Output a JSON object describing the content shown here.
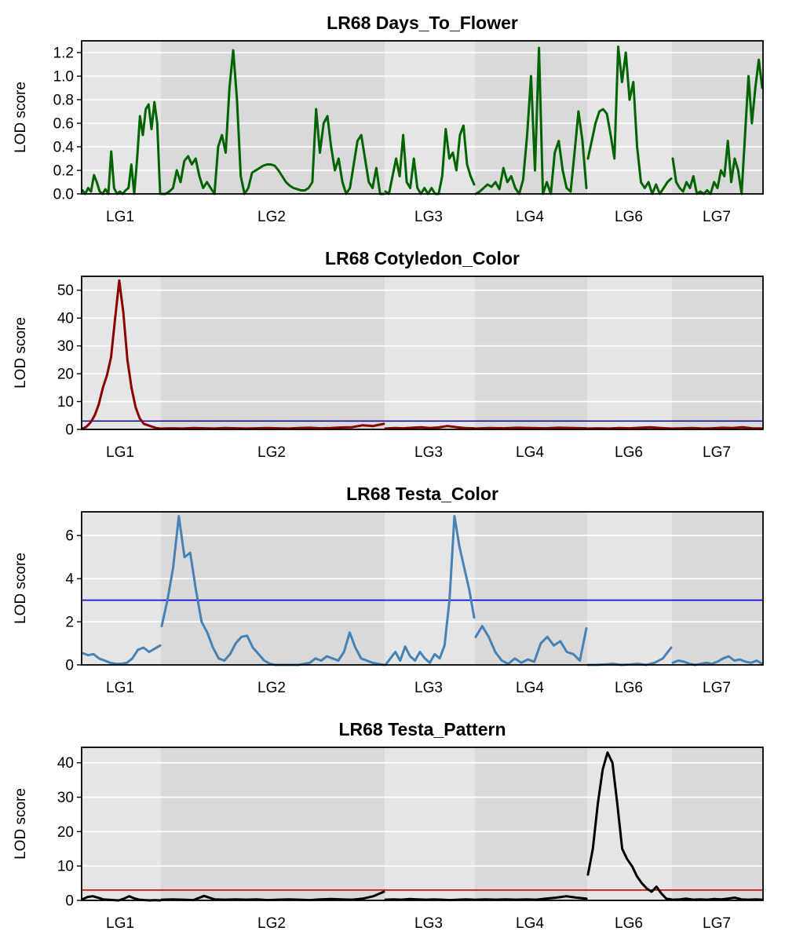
{
  "chart_data": [
    {
      "type": "line",
      "title": "LR68 Days_To_Flower",
      "ylabel": "LOD score",
      "ylim": [
        0,
        1.3
      ],
      "yticks": [
        0.0,
        0.2,
        0.4,
        0.6,
        0.8,
        1.0,
        1.2
      ],
      "ytick_labels": [
        "0.0",
        "0.2",
        "0.4",
        "0.6",
        "0.8",
        "1.0",
        "1.2"
      ],
      "xticks": [
        "LG1",
        "LG2",
        "LG3",
        "LG4",
        "LG6",
        "LG7"
      ],
      "grid": true,
      "threshold": null,
      "color": "#006400",
      "series": [
        {
          "lg": "LG1",
          "values": [
            0.03,
            0.0,
            0.05,
            0.02,
            0.16,
            0.1,
            0.02,
            0.0,
            0.04,
            0.0,
            0.36,
            0.05,
            0.0,
            0.02,
            0.0,
            0.03,
            0.05,
            0.25,
            0.0,
            0.3,
            0.66,
            0.5,
            0.72,
            0.76,
            0.55,
            0.78,
            0.6,
            0.0
          ]
        },
        {
          "lg": "LG2",
          "values": [
            0.0,
            0.0,
            0.02,
            0.05,
            0.2,
            0.1,
            0.28,
            0.32,
            0.25,
            0.3,
            0.15,
            0.05,
            0.1,
            0.05,
            0.0,
            0.4,
            0.5,
            0.35,
            0.9,
            1.22,
            0.8,
            0.15,
            0.0,
            0.05,
            0.18,
            0.2,
            0.22,
            0.24,
            0.25,
            0.25,
            0.24,
            0.2,
            0.15,
            0.1,
            0.07,
            0.05,
            0.04,
            0.03,
            0.03,
            0.05,
            0.1,
            0.72,
            0.35,
            0.6,
            0.66,
            0.4,
            0.2,
            0.3,
            0.1,
            0.0,
            0.05,
            0.25,
            0.45,
            0.5,
            0.3,
            0.1,
            0.05,
            0.22,
            0.0,
            0.0
          ]
        },
        {
          "lg": "LG3",
          "values": [
            0.02,
            0.0,
            0.15,
            0.3,
            0.15,
            0.5,
            0.1,
            0.05,
            0.3,
            0.05,
            0.0,
            0.05,
            0.0,
            0.05,
            0.0,
            0.0,
            0.15,
            0.55,
            0.3,
            0.35,
            0.2,
            0.5,
            0.58,
            0.25,
            0.15,
            0.08
          ]
        },
        {
          "lg": "LG4",
          "values": [
            0.0,
            0.02,
            0.05,
            0.08,
            0.06,
            0.1,
            0.04,
            0.22,
            0.1,
            0.15,
            0.05,
            0.0,
            0.12,
            0.5,
            1.0,
            0.2,
            1.24,
            0.0,
            0.1,
            0.0,
            0.35,
            0.45,
            0.2,
            0.05,
            0.02,
            0.35,
            0.7,
            0.45,
            0.05
          ]
        },
        {
          "lg": "LG6",
          "values": [
            0.3,
            0.45,
            0.6,
            0.7,
            0.72,
            0.68,
            0.5,
            0.3,
            1.25,
            0.95,
            1.2,
            0.8,
            0.95,
            0.4,
            0.1,
            0.05,
            0.1,
            0.0,
            0.08,
            0.0,
            0.05,
            0.1,
            0.13
          ]
        },
        {
          "lg": "LG7",
          "values": [
            0.3,
            0.1,
            0.05,
            0.02,
            0.1,
            0.05,
            0.15,
            0.0,
            0.02,
            0.0,
            0.03,
            0.0,
            0.1,
            0.05,
            0.2,
            0.15,
            0.45,
            0.1,
            0.3,
            0.2,
            0.0,
            0.5,
            1.0,
            0.6,
            0.9,
            1.14,
            0.9
          ]
        }
      ]
    },
    {
      "type": "line",
      "title": "LR68 Cotyledon_Color",
      "ylabel": "LOD score",
      "ylim": [
        0,
        55
      ],
      "yticks": [
        0,
        10,
        20,
        30,
        40,
        50
      ],
      "ytick_labels": [
        "0",
        "10",
        "20",
        "30",
        "40",
        "50"
      ],
      "xticks": [
        "LG1",
        "LG2",
        "LG3",
        "LG4",
        "LG6",
        "LG7"
      ],
      "grid": true,
      "threshold": {
        "value": 3,
        "color": "#00008B"
      },
      "color": "#8B0000",
      "series": [
        {
          "lg": "LG1",
          "values": [
            0.2,
            1.0,
            2.5,
            5.0,
            9.0,
            15.0,
            19.5,
            26.0,
            40.0,
            53.5,
            42.0,
            25.0,
            15.0,
            8.0,
            4.0,
            2.0,
            1.5,
            1.0,
            0.5,
            0.3
          ]
        },
        {
          "lg": "LG2",
          "values": [
            0.3,
            0.4,
            0.3,
            0.5,
            0.4,
            0.3,
            0.5,
            0.4,
            0.3,
            0.4,
            0.5,
            0.4,
            0.3,
            0.5,
            0.6,
            0.4,
            0.5,
            0.7,
            0.8,
            1.5,
            1.2,
            2.0
          ]
        },
        {
          "lg": "LG3",
          "values": [
            0.3,
            0.5,
            0.4,
            0.6,
            0.8,
            0.5,
            0.7,
            1.2,
            0.8,
            0.5,
            0.4
          ]
        },
        {
          "lg": "LG4",
          "values": [
            0.3,
            0.5,
            0.4,
            0.6,
            0.5,
            0.4,
            0.6,
            0.5,
            0.4
          ]
        },
        {
          "lg": "LG6",
          "values": [
            0.3,
            0.4,
            0.3,
            0.5,
            0.4,
            0.6,
            0.8,
            0.5,
            0.3
          ]
        },
        {
          "lg": "LG7",
          "values": [
            0.3,
            0.4,
            0.5,
            0.3,
            0.4,
            0.6,
            0.5,
            0.8,
            0.4,
            0.3
          ]
        }
      ]
    },
    {
      "type": "line",
      "title": "LR68 Testa_Color",
      "ylabel": "LOD score",
      "ylim": [
        0,
        7.1
      ],
      "yticks": [
        0,
        2,
        4,
        6
      ],
      "ytick_labels": [
        "0",
        "2",
        "4",
        "6"
      ],
      "xticks": [
        "LG1",
        "LG2",
        "LG3",
        "LG4",
        "LG6",
        "LG7"
      ],
      "grid": true,
      "threshold": {
        "value": 3,
        "color": "#0000CD"
      },
      "color": "#4682B4",
      "series": [
        {
          "lg": "LG1",
          "values": [
            0.55,
            0.45,
            0.5,
            0.3,
            0.2,
            0.1,
            0.05,
            0.05,
            0.1,
            0.3,
            0.7,
            0.8,
            0.6,
            0.75,
            0.9
          ]
        },
        {
          "lg": "LG2",
          "values": [
            1.8,
            3.0,
            4.5,
            6.9,
            5.0,
            5.2,
            3.5,
            2.0,
            1.5,
            0.8,
            0.3,
            0.2,
            0.5,
            1.0,
            1.3,
            1.35,
            0.8,
            0.5,
            0.2,
            0.05,
            0.0,
            0.0,
            0.0,
            0.0,
            0.0,
            0.05,
            0.1,
            0.3,
            0.2,
            0.4,
            0.3,
            0.2,
            0.6,
            1.5,
            0.8,
            0.3,
            0.2,
            0.1,
            0.05,
            0.0
          ]
        },
        {
          "lg": "LG3",
          "values": [
            0.0,
            0.3,
            0.6,
            0.2,
            0.85,
            0.4,
            0.2,
            0.6,
            0.3,
            0.1,
            0.5,
            0.3,
            0.9,
            3.0,
            6.9,
            5.5,
            4.5,
            3.5,
            2.2
          ]
        },
        {
          "lg": "LG4",
          "values": [
            1.3,
            1.8,
            1.3,
            0.6,
            0.2,
            0.05,
            0.3,
            0.1,
            0.25,
            0.15,
            1.0,
            1.3,
            0.9,
            1.1,
            0.6,
            0.5,
            0.2,
            1.7
          ]
        },
        {
          "lg": "LG6",
          "values": [
            0.0,
            0.0,
            0.02,
            0.05,
            0.0,
            0.02,
            0.05,
            0.0,
            0.1,
            0.3,
            0.8
          ]
        },
        {
          "lg": "LG7",
          "values": [
            0.1,
            0.2,
            0.15,
            0.05,
            0.0,
            0.05,
            0.1,
            0.05,
            0.15,
            0.3,
            0.4,
            0.2,
            0.25,
            0.15,
            0.1,
            0.2,
            0.05
          ]
        }
      ]
    },
    {
      "type": "line",
      "title": "LR68 Testa_Pattern",
      "ylabel": "LOD score",
      "ylim": [
        0,
        44.5
      ],
      "yticks": [
        0,
        10,
        20,
        30,
        40
      ],
      "ytick_labels": [
        "0",
        "10",
        "20",
        "30",
        "40"
      ],
      "xticks": [
        "LG1",
        "LG2",
        "LG3",
        "LG4",
        "LG6",
        "LG7"
      ],
      "grid": true,
      "threshold": {
        "value": 3,
        "color": "#CD0000"
      },
      "color": "#000000",
      "series": [
        {
          "lg": "LG1",
          "values": [
            0.3,
            1.0,
            1.2,
            0.8,
            0.3,
            0.2,
            0.1,
            0.0,
            0.5,
            1.2,
            0.6,
            0.2,
            0.1,
            0.0,
            0.1,
            0.0
          ]
        },
        {
          "lg": "LG2",
          "values": [
            0.2,
            0.3,
            0.2,
            0.1,
            1.3,
            0.3,
            0.2,
            0.3,
            0.2,
            0.3,
            0.1,
            0.2,
            0.3,
            0.2,
            0.1,
            0.3,
            0.4,
            0.3,
            0.2,
            0.5,
            1.2,
            2.5
          ]
        },
        {
          "lg": "LG3",
          "values": [
            0.2,
            0.3,
            0.2,
            0.4,
            0.3,
            0.2,
            0.3,
            0.2,
            0.1,
            0.2,
            0.3,
            0.2
          ]
        },
        {
          "lg": "LG4",
          "values": [
            0.2,
            0.3,
            0.2,
            0.3,
            0.2,
            0.3,
            0.2,
            0.5,
            0.8,
            1.2,
            0.8,
            0.5
          ]
        },
        {
          "lg": "LG6",
          "values": [
            7.5,
            15.0,
            28.0,
            38.0,
            43.0,
            40.0,
            28.0,
            15.0,
            12.0,
            10.0,
            7.0,
            5.0,
            3.5,
            2.5,
            4.0,
            2.0,
            0.5,
            0.3
          ]
        },
        {
          "lg": "LG7",
          "values": [
            0.2,
            0.3,
            0.5,
            0.2,
            0.3,
            0.2,
            0.4,
            0.3,
            0.5,
            0.8,
            0.3,
            0.2,
            0.3,
            0.2
          ]
        }
      ]
    }
  ]
}
